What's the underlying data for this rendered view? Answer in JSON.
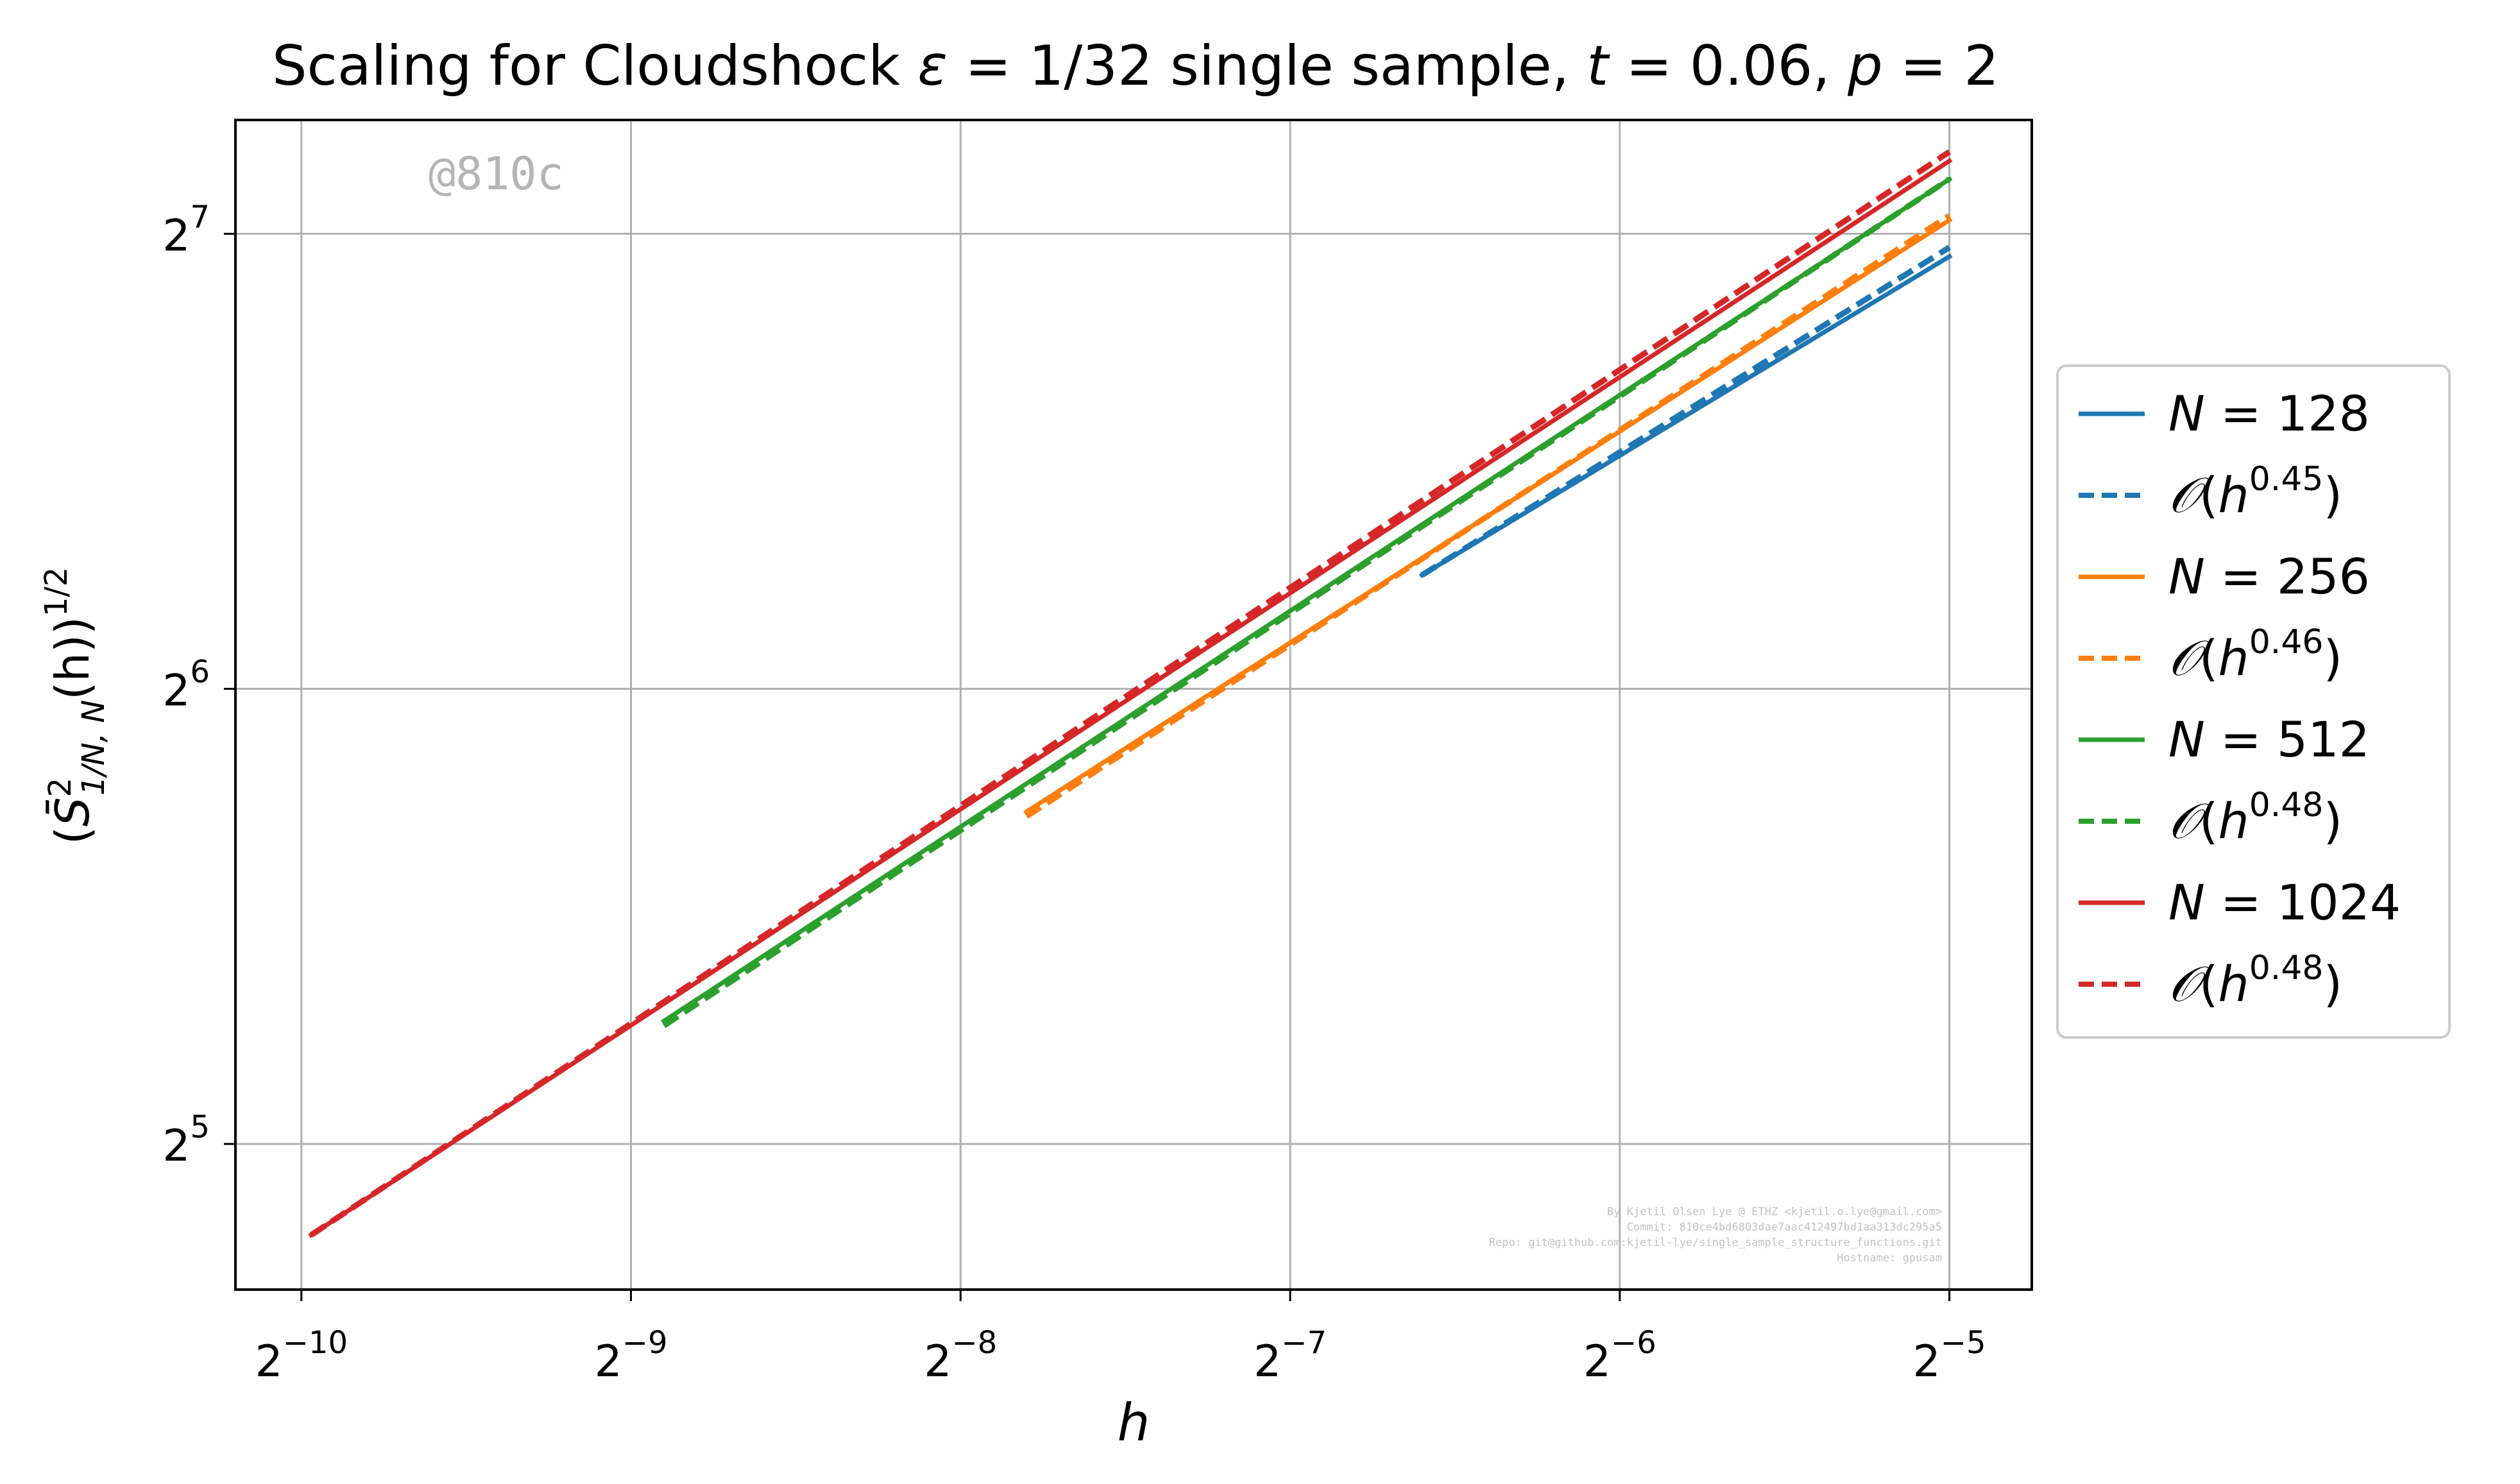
{
  "chart_data": {
    "type": "line",
    "title_parts": {
      "prefix": "Scaling for Cloudshock ",
      "eps_sym": "ε",
      "eps_val": " = 1/32 single sample, ",
      "t_sym": "t",
      "t_val": " = 0.06, ",
      "p_sym": "p",
      "p_val": " = 2"
    },
    "xlabel": "h",
    "ylabel": {
      "open": "(",
      "S": "S̄",
      "sup": "2",
      "sub": "1/N, N",
      "mid": "(h))",
      "exp": "1/2"
    },
    "x_scale": "log2",
    "y_scale": "log2",
    "xlim_log2": [
      -10.2,
      -4.75
    ],
    "ylim_log2": [
      4.68,
      7.25
    ],
    "x_ticks": [
      {
        "base": "2",
        "exp": "−10",
        "log2": -10
      },
      {
        "base": "2",
        "exp": "−9",
        "log2": -9
      },
      {
        "base": "2",
        "exp": "−8",
        "log2": -8
      },
      {
        "base": "2",
        "exp": "−7",
        "log2": -7
      },
      {
        "base": "2",
        "exp": "−6",
        "log2": -6
      },
      {
        "base": "2",
        "exp": "−5",
        "log2": -5
      }
    ],
    "y_ticks": [
      {
        "base": "2",
        "exp": "5",
        "log2": 5
      },
      {
        "base": "2",
        "exp": "6",
        "log2": 6
      },
      {
        "base": "2",
        "exp": "7",
        "log2": 7
      }
    ],
    "grid": true,
    "legend_position": "right-outside",
    "series": [
      {
        "N": "128",
        "fit_exp": "0.45",
        "color": "#1f77b4",
        "h_log2": [
          -6.6,
          -5
        ],
        "y_log2": [
          6.25,
          6.95
        ],
        "fit_y_log2": [
          6.25,
          6.97
        ]
      },
      {
        "N": "256",
        "fit_exp": "0.46",
        "color": "#ff7f0e",
        "h_log2": [
          -7.8,
          -5
        ],
        "y_log2": [
          5.73,
          7.03
        ],
        "fit_y_log2": [
          5.72,
          7.04
        ]
      },
      {
        "N": "512",
        "fit_exp": "0.48",
        "color": "#2ca02c",
        "h_log2": [
          -8.9,
          -5
        ],
        "y_log2": [
          5.27,
          7.12
        ],
        "fit_y_log2": [
          5.26,
          7.12
        ]
      },
      {
        "N": "1024",
        "fit_exp": "0.48",
        "color": "#d62728",
        "h_log2": [
          -9.97,
          -5
        ],
        "y_log2": [
          4.8,
          7.16
        ],
        "fit_y_log2": [
          4.8,
          7.18
        ]
      }
    ],
    "legend_entries": {
      "n_prefix": "N",
      "eq": " = ",
      "fit_script": "𝒪",
      "fit_open": "(",
      "fit_h": "h",
      "fit_close": ")"
    },
    "watermark": "@810c",
    "credits": [
      "By Kjetil Olsen Lye @ ETHZ <kjetil.o.lye@gmail.com>",
      "Commit: 810ce4bd6803dae7aac412497bd1aa313dc295a5",
      "Repo: git@github.com:kjetil-lye/single_sample_structure_functions.git",
      "Hostname: gpusam"
    ]
  }
}
